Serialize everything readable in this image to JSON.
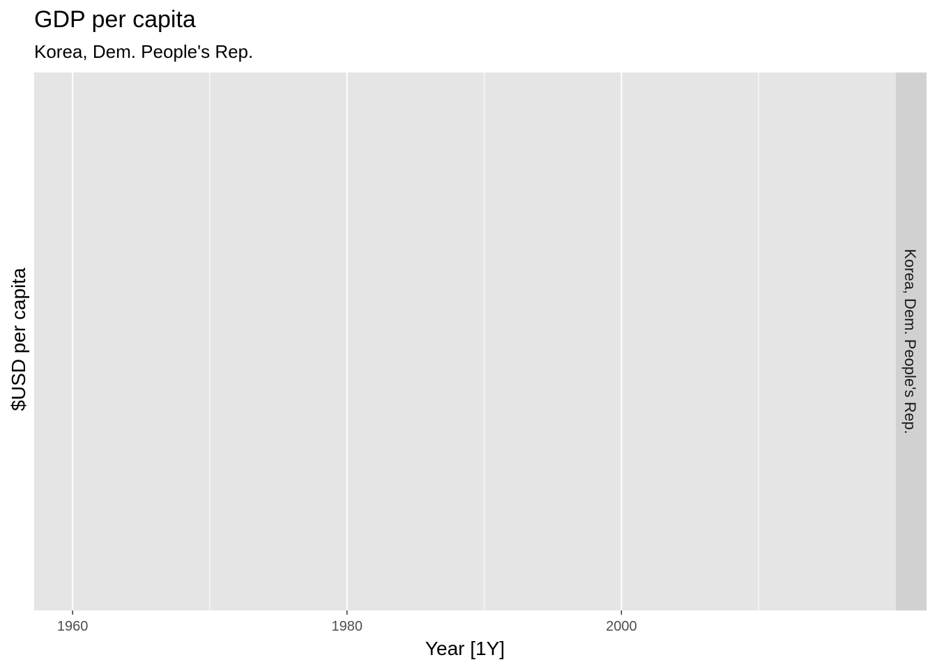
{
  "chart_data": {
    "type": "line",
    "title": "GDP per capita",
    "subtitle": "Korea, Dem. People's Rep.",
    "xlabel": "Year [1Y]",
    "ylabel": "$USD per capita",
    "facet_label": "Korea, Dem. People's Rep.",
    "xlim": [
      1957.2,
      2020
    ],
    "x_major_ticks": [
      1960,
      1980,
      2000
    ],
    "x_tick_labels": [
      "1960",
      "1980",
      "2000"
    ],
    "x_minor_ticks": [
      1970,
      1990,
      2010
    ],
    "series": [],
    "grid": true,
    "colors": {
      "panel": "#e5e5e5",
      "strip": "#d1d1d1",
      "gridline": "#ffffff",
      "tick_text": "#4d4d4d"
    }
  }
}
